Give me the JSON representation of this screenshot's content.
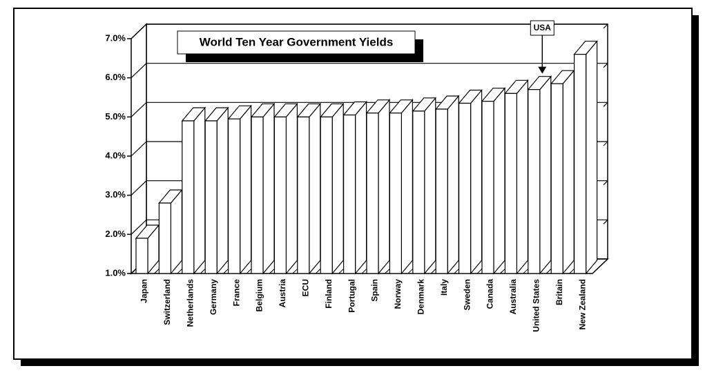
{
  "chart_data": {
    "type": "bar3d",
    "title": "World Ten Year Government Yields",
    "categories": [
      "Japan",
      "Switzerland",
      "Netherlands",
      "Germany",
      "France",
      "Belgium",
      "Austria",
      "ECU",
      "Finland",
      "Portugal",
      "Spain",
      "Norway",
      "Denmark",
      "Italy",
      "Sweden",
      "Canada",
      "Australia",
      "United States",
      "Britain",
      "New Zealand"
    ],
    "values": [
      1.9,
      2.8,
      4.9,
      4.9,
      4.95,
      5.0,
      5.0,
      5.0,
      5.0,
      5.05,
      5.1,
      5.1,
      5.15,
      5.2,
      5.35,
      5.4,
      5.6,
      5.7,
      5.85,
      6.6
    ],
    "color": "#ffffff",
    "ylim": [
      1,
      7
    ],
    "yticks": [
      {
        "value": 1,
        "label": "1.0%"
      },
      {
        "value": 2,
        "label": "2.0%"
      },
      {
        "value": 3,
        "label": "3.0%"
      },
      {
        "value": 4,
        "label": "4.0%"
      },
      {
        "value": 5,
        "label": "5.0%"
      },
      {
        "value": 6,
        "label": "6.0%"
      },
      {
        "value": 7,
        "label": "7.0%"
      }
    ],
    "grid": true,
    "annotation": {
      "text": "USA",
      "category": "United States"
    }
  }
}
